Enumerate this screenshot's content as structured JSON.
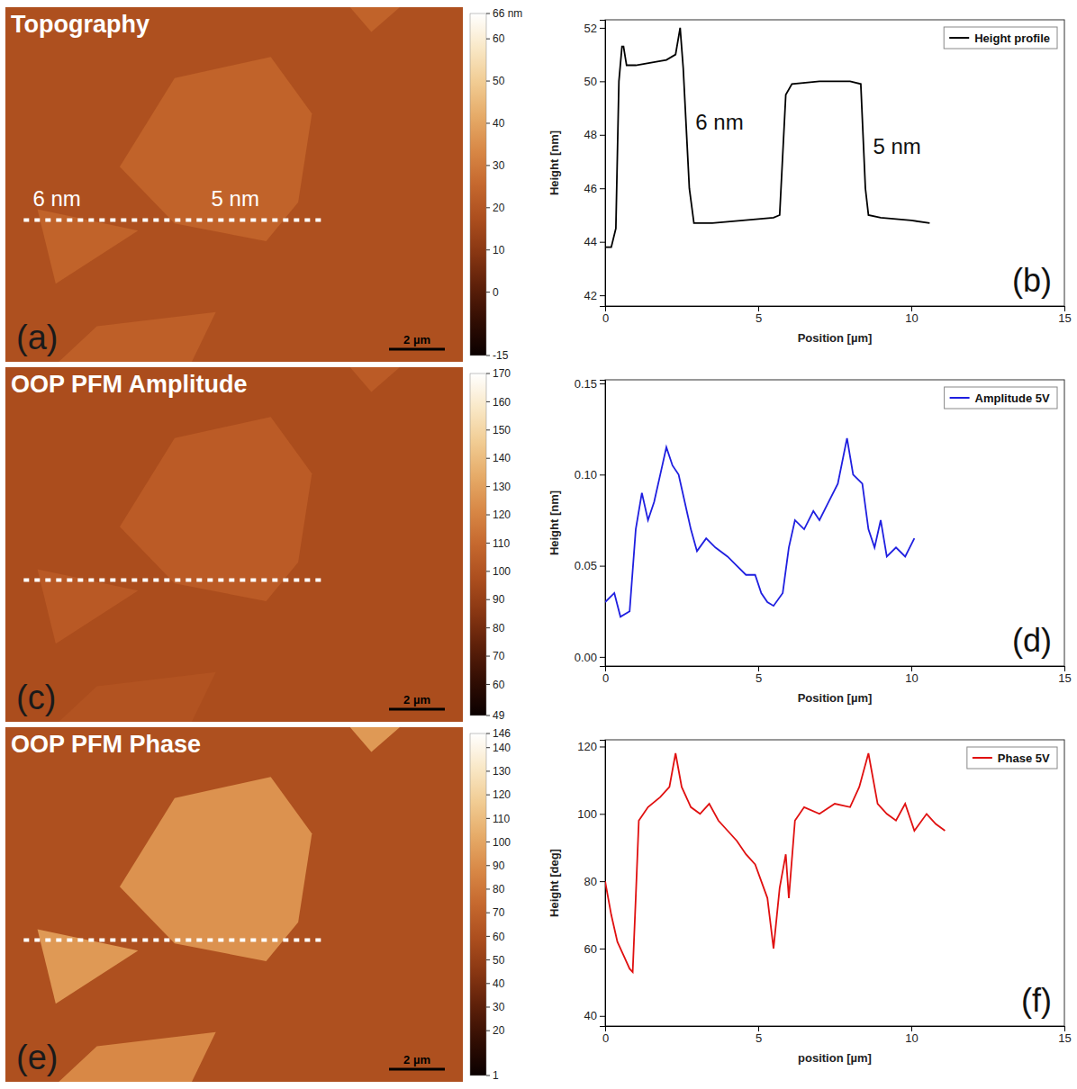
{
  "chart_data": [
    {
      "type": "image",
      "title": "Topography",
      "panel": "(a)",
      "colorbar": {
        "range": [
          -15,
          66
        ],
        "ticks": [
          {
            "value": 66,
            "label": "66 nm"
          },
          60,
          50,
          40,
          30,
          20,
          10,
          0,
          -15
        ]
      },
      "substrate": 18,
      "flakes": [
        24,
        24,
        23,
        24
      ],
      "annotations": [
        "6 nm",
        "5 nm"
      ],
      "scale_bar": "2 µm"
    },
    {
      "type": "line",
      "panel": "(b)",
      "xlabel": "Position [µm]",
      "ylabel": "Height [nm]",
      "x": [
        0,
        0.2,
        0.35,
        0.45,
        0.55,
        0.6,
        0.7,
        1.0,
        1.5,
        2.0,
        2.3,
        2.45,
        2.55,
        2.75,
        2.9,
        3.5,
        4.5,
        5.5,
        5.7,
        5.9,
        6.1,
        7.0,
        8.0,
        8.35,
        8.5,
        8.6,
        9.0,
        10.0,
        10.6
      ],
      "series": [
        {
          "name": "Height profile",
          "color": "#000000",
          "values": [
            43.8,
            43.8,
            44.5,
            50.0,
            51.3,
            51.3,
            50.6,
            50.6,
            50.7,
            50.8,
            51.0,
            52.0,
            50.5,
            46.0,
            44.7,
            44.7,
            44.8,
            44.9,
            45.0,
            49.5,
            49.9,
            50.0,
            50.0,
            49.9,
            46.0,
            45.0,
            44.9,
            44.8,
            44.7
          ]
        }
      ],
      "xlim": [
        0,
        15
      ],
      "ylim": [
        41.6,
        52.3
      ],
      "xticks": [
        0,
        5,
        10,
        15
      ],
      "yticks": [
        42,
        44,
        46,
        48,
        50,
        52
      ],
      "legend": "upper right",
      "grid": false,
      "annotations": [
        {
          "text": "6 nm",
          "x": 2.95,
          "y": 48.2
        },
        {
          "text": "5 nm",
          "x": 8.75,
          "y": 47.3
        }
      ]
    },
    {
      "type": "image",
      "title": "OOP PFM Amplitude",
      "panel": "(c)",
      "colorbar": {
        "range": [
          49,
          170
        ],
        "ticks": [
          170,
          160,
          150,
          140,
          130,
          120,
          110,
          100,
          90,
          80,
          70,
          60,
          49
        ]
      },
      "substrate": 97,
      "flakes": [
        104,
        103,
        100,
        104
      ],
      "annotations": [],
      "scale_bar": "2 µm"
    },
    {
      "type": "line",
      "panel": "(d)",
      "xlabel": "Position [µm]",
      "ylabel": "Height [nm]",
      "x": [
        0,
        0.3,
        0.5,
        0.8,
        1.0,
        1.2,
        1.4,
        1.6,
        1.8,
        2.0,
        2.2,
        2.4,
        2.6,
        2.8,
        3.0,
        3.3,
        3.6,
        4.0,
        4.3,
        4.6,
        4.9,
        5.1,
        5.3,
        5.5,
        5.8,
        6.0,
        6.2,
        6.5,
        6.8,
        7.0,
        7.3,
        7.6,
        7.9,
        8.1,
        8.4,
        8.6,
        8.8,
        9.0,
        9.2,
        9.5,
        9.8,
        10.1
      ],
      "series": [
        {
          "name": "Amplitude 5V",
          "color": "#1f1fe0",
          "values": [
            0.03,
            0.035,
            0.022,
            0.025,
            0.07,
            0.09,
            0.075,
            0.085,
            0.1,
            0.115,
            0.105,
            0.1,
            0.085,
            0.07,
            0.058,
            0.065,
            0.06,
            0.055,
            0.05,
            0.045,
            0.045,
            0.035,
            0.03,
            0.028,
            0.035,
            0.06,
            0.075,
            0.07,
            0.08,
            0.075,
            0.085,
            0.095,
            0.12,
            0.1,
            0.095,
            0.07,
            0.06,
            0.075,
            0.055,
            0.06,
            0.055,
            0.065
          ]
        }
      ],
      "xlim": [
        0,
        15
      ],
      "ylim": [
        -0.005,
        0.152
      ],
      "xticks": [
        0,
        5,
        10,
        15
      ],
      "yticks": [
        {
          "value": 0,
          "label": "0.00"
        },
        {
          "value": 0.05,
          "label": "0.05"
        },
        {
          "value": 0.1,
          "label": "0.10"
        },
        {
          "value": 0.15,
          "label": "0.15"
        }
      ],
      "legend": "upper right",
      "grid": false,
      "annotations": []
    },
    {
      "type": "image",
      "title": "OOP PFM Phase",
      "panel": "(e)",
      "colorbar": {
        "range": [
          1,
          146
        ],
        "ticks": [
          146,
          140,
          130,
          120,
          110,
          100,
          90,
          80,
          70,
          60,
          50,
          40,
          30,
          20,
          1
        ]
      },
      "substrate": 60,
      "flakes": [
        92,
        95,
        88,
        95
      ],
      "annotations": [],
      "scale_bar": "2 µm"
    },
    {
      "type": "line",
      "panel": "(f)",
      "xlabel": "position [µm]",
      "ylabel": "Height [deg]",
      "x": [
        0,
        0.2,
        0.4,
        0.6,
        0.8,
        0.9,
        1.0,
        1.1,
        1.4,
        1.8,
        2.1,
        2.3,
        2.5,
        2.8,
        3.1,
        3.4,
        3.7,
        4.0,
        4.3,
        4.6,
        4.9,
        5.1,
        5.3,
        5.5,
        5.7,
        5.9,
        6.0,
        6.2,
        6.5,
        7.0,
        7.5,
        8.0,
        8.3,
        8.6,
        8.9,
        9.2,
        9.5,
        9.8,
        10.1,
        10.5,
        10.8,
        11.1
      ],
      "series": [
        {
          "name": "Phase 5V",
          "color": "#e01010",
          "values": [
            80,
            70,
            62,
            58,
            54,
            53,
            75,
            98,
            102,
            105,
            108,
            118,
            108,
            102,
            100,
            103,
            98,
            95,
            92,
            88,
            85,
            80,
            75,
            60,
            78,
            88,
            75,
            98,
            102,
            100,
            103,
            102,
            108,
            118,
            103,
            100,
            98,
            103,
            95,
            100,
            97,
            95
          ]
        }
      ],
      "xlim": [
        0,
        15
      ],
      "ylim": [
        37,
        122
      ],
      "xticks": [
        0,
        5,
        10,
        15
      ],
      "yticks": [
        40,
        60,
        80,
        100,
        120
      ],
      "legend": "upper right",
      "grid": false,
      "annotations": []
    }
  ]
}
